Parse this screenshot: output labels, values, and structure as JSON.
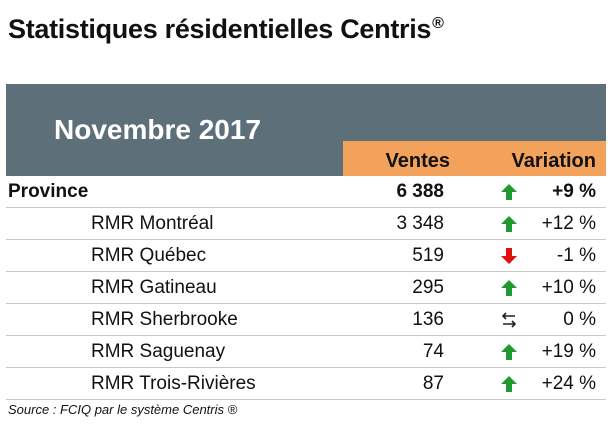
{
  "title": "Statistiques résidentielles Centris",
  "title_mark": "®",
  "period": "Novembre 2017",
  "columns": {
    "sales": "Ventes",
    "variation": "Variation"
  },
  "colors": {
    "banner": "#5d6f79",
    "header_accent": "#f2a25a",
    "up": "#1f9a2f",
    "down": "#e01010"
  },
  "rows": [
    {
      "name": "Province",
      "sales": "6 388",
      "trend": "up-arrow-icon",
      "variation": "+9 %"
    },
    {
      "name": "RMR Montréal",
      "sales": "3 348",
      "trend": "up-arrow-icon",
      "variation": "+12 %"
    },
    {
      "name": "RMR Québec",
      "sales": "519",
      "trend": "down-arrow-icon",
      "variation": "-1 %"
    },
    {
      "name": "RMR Gatineau",
      "sales": "295",
      "trend": "up-arrow-icon",
      "variation": "+10 %"
    },
    {
      "name": "RMR Sherbrooke",
      "sales": "136",
      "trend": "stable-arrows-icon",
      "variation": "0 %"
    },
    {
      "name": "RMR Saguenay",
      "sales": "74",
      "trend": "up-arrow-icon",
      "variation": "+19 %"
    },
    {
      "name": "RMR Trois-Rivières",
      "sales": "87",
      "trend": "up-arrow-icon",
      "variation": "+24 %"
    }
  ],
  "source": "Source : FCIQ par le système Centris ®"
}
